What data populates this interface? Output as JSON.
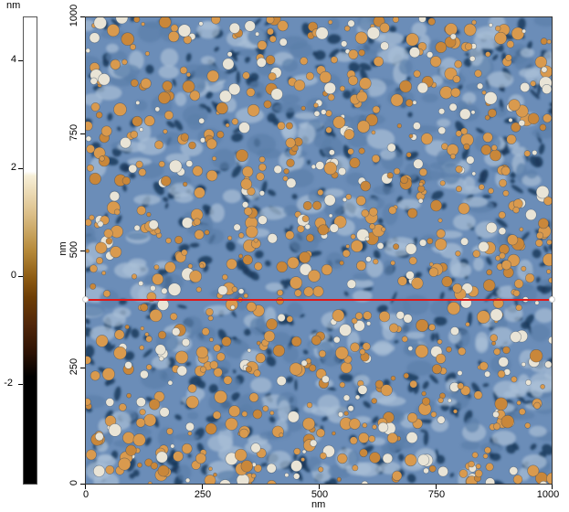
{
  "scalebar": {
    "unit": "nm",
    "ticks": [
      "4",
      "2",
      "0",
      "-2"
    ]
  },
  "axes": {
    "y_ticks": [
      "1000",
      "750",
      "500",
      "250",
      "0"
    ],
    "x_ticks": [
      "0",
      "250",
      "500",
      "750",
      "1000"
    ],
    "y_unit": "nm",
    "x_unit": "nm"
  },
  "colors": {
    "profile_line": "#e01818",
    "high": "#d99a4e",
    "low": "#1a3a5c",
    "mid": "#6b8db8"
  }
}
